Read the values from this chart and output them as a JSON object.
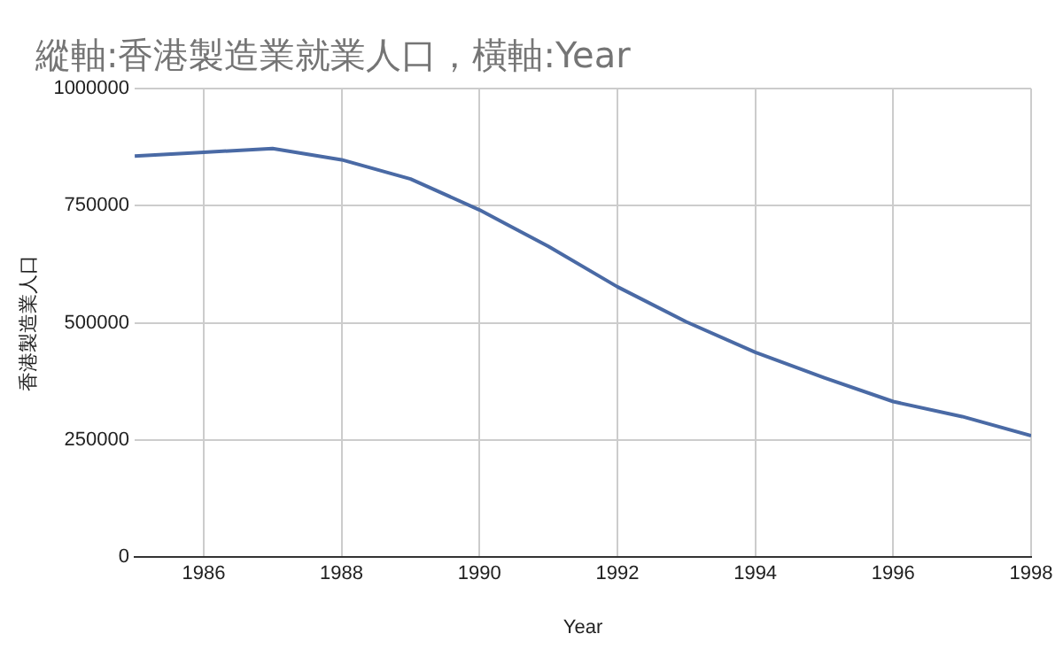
{
  "chart_data": {
    "type": "line",
    "title": "縱軸:香港製造業就業人口，橫軸:Year",
    "xlabel": "Year",
    "ylabel": "香港製造業人口",
    "x": [
      1985,
      1986,
      1987,
      1988,
      1989,
      1990,
      1991,
      1992,
      1993,
      1994,
      1995,
      1996,
      1997,
      1998
    ],
    "series": [
      {
        "color": "#4a6aa5",
        "values": [
          856000,
          864000,
          872000,
          848000,
          807000,
          741000,
          663000,
          577000,
          502000,
          437000,
          383000,
          332000,
          300000,
          259000
        ]
      }
    ],
    "xlim": [
      1985,
      1998
    ],
    "xticks": [
      1986,
      1988,
      1990,
      1992,
      1994,
      1996,
      1998
    ],
    "ylim": [
      0,
      1000000
    ],
    "yticks": [
      0,
      250000,
      500000,
      750000,
      1000000
    ],
    "grid": true,
    "legend": false,
    "marker": "none",
    "line_style": "solid"
  }
}
